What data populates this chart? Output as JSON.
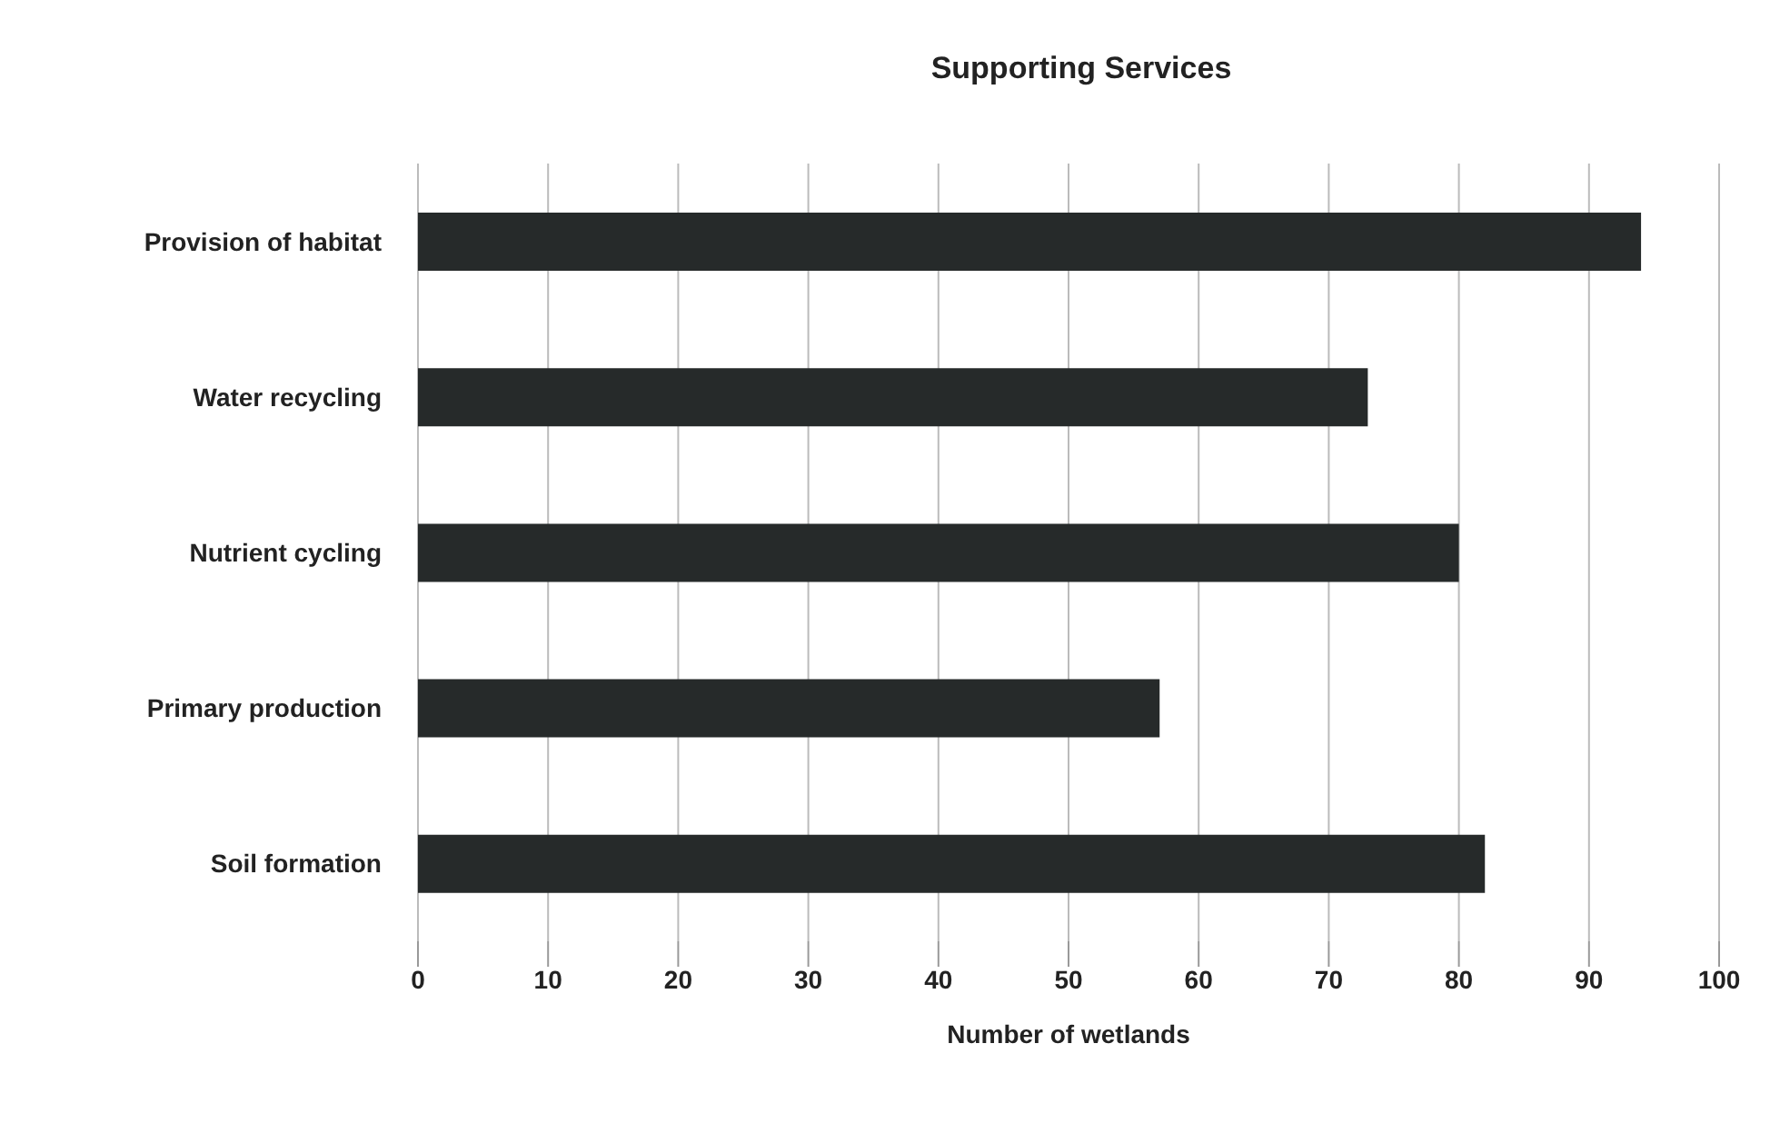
{
  "chart_data": {
    "type": "bar",
    "orientation": "horizontal",
    "title": "Supporting Services",
    "xlabel": "Number of wetlands",
    "categories": [
      "Provision of habitat",
      "Water recycling",
      "Nutrient cycling",
      "Primary production",
      "Soil formation"
    ],
    "values": [
      94,
      73,
      80,
      57,
      82
    ],
    "color": "#262a2a",
    "xlim": [
      0,
      100
    ],
    "xticks": [
      0,
      10,
      20,
      30,
      40,
      50,
      60,
      70,
      80,
      90,
      100
    ],
    "grid": "x"
  }
}
